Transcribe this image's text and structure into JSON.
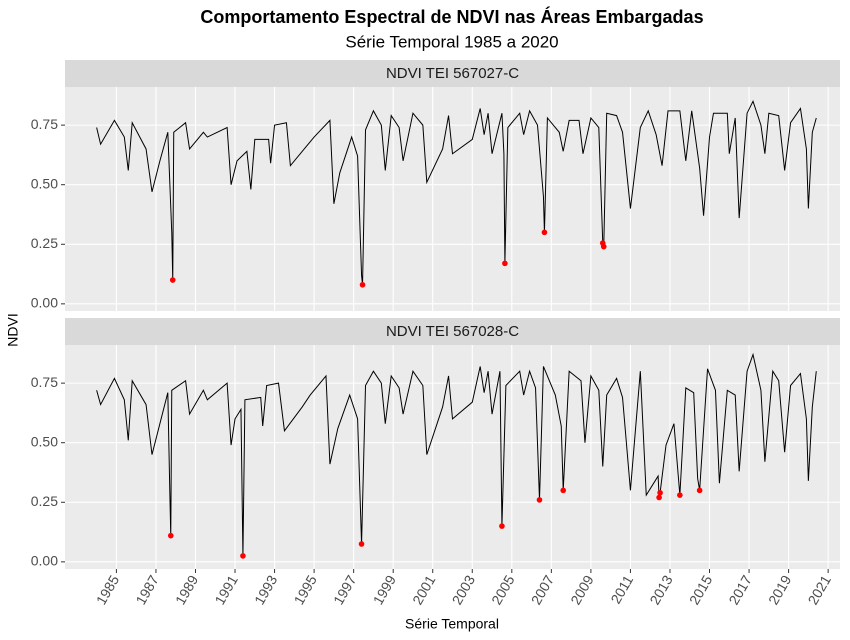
{
  "chart_data": {
    "type": "line",
    "title": "Comportamento Espectral de NDVI nas Áreas Embargadas",
    "subtitle": "Série Temporal 1985 a 2020",
    "x_label": "Série Temporal",
    "y_label": "NDVI",
    "xlim": [
      1982.4,
      2021.6
    ],
    "xticks": [
      1985,
      1987,
      1989,
      1991,
      1993,
      1995,
      1997,
      1999,
      2001,
      2003,
      2005,
      2007,
      2009,
      2011,
      2013,
      2015,
      2017,
      2019,
      2021
    ],
    "ylim": [
      -0.03,
      0.91
    ],
    "yticks": [
      {
        "value": 0,
        "label": "0.00"
      },
      0.25,
      {
        "value": 0.5,
        "label": "0.50"
      },
      0.75
    ],
    "grid": true,
    "line_color": "#000000",
    "point_color": "#ff0000",
    "panels": [
      {
        "strip": "NDVI TEI 567027-C",
        "x": [
          1984.0,
          1984.2,
          1984.9,
          1985.4,
          1985.6,
          1985.8,
          1986.5,
          1986.8,
          1987.2,
          1987.6,
          1987.8,
          1987.85,
          1987.9,
          1988.5,
          1988.7,
          1989.4,
          1989.6,
          1990.6,
          1990.8,
          1991.1,
          1991.6,
          1991.8,
          1992.0,
          1992.7,
          1992.8,
          1993.0,
          1993.6,
          1993.8,
          1994.6,
          1995.0,
          1995.8,
          1996.0,
          1996.3,
          1996.9,
          1997.2,
          1997.4,
          1997.45,
          1997.6,
          1998.0,
          1998.4,
          1998.6,
          1998.9,
          1999.3,
          1999.5,
          2000.0,
          2000.5,
          2000.7,
          2001.5,
          2001.8,
          2002.0,
          2003.0,
          2003.4,
          2003.6,
          2003.8,
          2004.0,
          2004.5,
          2004.6,
          2004.65,
          2004.8,
          2005.4,
          2005.6,
          2005.9,
          2006.3,
          2006.6,
          2006.65,
          2006.8,
          2007.4,
          2007.6,
          2007.9,
          2008.4,
          2008.6,
          2009.0,
          2009.4,
          2009.6,
          2009.65,
          2009.8,
          2010.3,
          2010.6,
          2011.0,
          2011.5,
          2011.9,
          2012.3,
          2012.6,
          2012.9,
          2013.5,
          2013.8,
          2014.1,
          2014.5,
          2014.7,
          2015.0,
          2015.2,
          2015.9,
          2016.0,
          2016.3,
          2016.5,
          2016.9,
          2017.2,
          2017.6,
          2017.8,
          2018.0,
          2018.5,
          2018.8,
          2019.1,
          2019.6,
          2019.9,
          2020.0,
          2020.2,
          2020.4
        ],
        "values": [
          0.74,
          0.67,
          0.77,
          0.7,
          0.56,
          0.76,
          0.65,
          0.47,
          0.6,
          0.72,
          0.3,
          0.1,
          0.72,
          0.76,
          0.65,
          0.72,
          0.7,
          0.74,
          0.5,
          0.6,
          0.64,
          0.48,
          0.69,
          0.69,
          0.59,
          0.75,
          0.76,
          0.58,
          0.66,
          0.7,
          0.77,
          0.42,
          0.55,
          0.7,
          0.62,
          0.12,
          0.08,
          0.73,
          0.81,
          0.75,
          0.56,
          0.79,
          0.74,
          0.6,
          0.8,
          0.75,
          0.51,
          0.65,
          0.79,
          0.63,
          0.69,
          0.82,
          0.71,
          0.8,
          0.63,
          0.8,
          0.63,
          0.17,
          0.74,
          0.8,
          0.71,
          0.81,
          0.75,
          0.45,
          0.3,
          0.78,
          0.72,
          0.64,
          0.77,
          0.77,
          0.63,
          0.78,
          0.74,
          0.255,
          0.24,
          0.8,
          0.79,
          0.72,
          0.4,
          0.74,
          0.81,
          0.71,
          0.58,
          0.81,
          0.81,
          0.6,
          0.81,
          0.57,
          0.37,
          0.7,
          0.8,
          0.8,
          0.63,
          0.78,
          0.36,
          0.8,
          0.85,
          0.75,
          0.63,
          0.8,
          0.79,
          0.56,
          0.76,
          0.82,
          0.65,
          0.4,
          0.72,
          0.78
        ],
        "points": {
          "x": [
            1987.85,
            1997.45,
            2004.65,
            2006.65,
            2009.6,
            2009.65
          ],
          "values": [
            0.1,
            0.08,
            0.17,
            0.3,
            0.255,
            0.24
          ]
        }
      },
      {
        "strip": "NDVI TEI 567028-C",
        "x": [
          1984.0,
          1984.2,
          1984.9,
          1985.4,
          1985.6,
          1985.8,
          1986.5,
          1986.8,
          1987.2,
          1987.6,
          1987.7,
          1987.75,
          1987.8,
          1988.5,
          1988.7,
          1989.4,
          1989.6,
          1990.6,
          1990.8,
          1991.0,
          1991.3,
          1991.4,
          1991.5,
          1992.3,
          1992.4,
          1992.6,
          1993.2,
          1993.5,
          1994.4,
          1994.8,
          1995.6,
          1995.8,
          1996.2,
          1996.8,
          1997.2,
          1997.4,
          1997.6,
          1998.0,
          1998.4,
          1998.6,
          1998.9,
          1999.3,
          1999.5,
          2000.0,
          2000.5,
          2000.7,
          2001.5,
          2001.8,
          2002.0,
          2003.0,
          2003.4,
          2003.6,
          2003.8,
          2004.0,
          2004.4,
          2004.5,
          2004.7,
          2005.4,
          2005.6,
          2005.9,
          2006.2,
          2006.4,
          2006.6,
          2007.2,
          2007.5,
          2007.6,
          2007.9,
          2008.5,
          2008.7,
          2009.0,
          2009.4,
          2009.6,
          2009.8,
          2010.3,
          2010.6,
          2011.0,
          2011.5,
          2011.8,
          2012.4,
          2012.45,
          2012.5,
          2012.8,
          2013.2,
          2013.5,
          2013.8,
          2014.2,
          2014.4,
          2014.5,
          2014.9,
          2015.3,
          2015.5,
          2015.9,
          2016.3,
          2016.5,
          2016.9,
          2017.2,
          2017.6,
          2017.8,
          2018.2,
          2018.5,
          2018.8,
          2019.1,
          2019.6,
          2019.9,
          2020.0,
          2020.2,
          2020.4
        ],
        "values": [
          0.72,
          0.66,
          0.77,
          0.68,
          0.51,
          0.76,
          0.66,
          0.45,
          0.58,
          0.71,
          0.3,
          0.11,
          0.72,
          0.76,
          0.62,
          0.72,
          0.68,
          0.75,
          0.49,
          0.6,
          0.64,
          0.025,
          0.68,
          0.69,
          0.57,
          0.74,
          0.75,
          0.55,
          0.65,
          0.7,
          0.78,
          0.41,
          0.56,
          0.7,
          0.6,
          0.075,
          0.74,
          0.8,
          0.75,
          0.58,
          0.78,
          0.73,
          0.62,
          0.8,
          0.74,
          0.45,
          0.65,
          0.78,
          0.6,
          0.67,
          0.82,
          0.71,
          0.8,
          0.62,
          0.8,
          0.15,
          0.74,
          0.8,
          0.7,
          0.8,
          0.73,
          0.26,
          0.82,
          0.7,
          0.57,
          0.3,
          0.8,
          0.76,
          0.5,
          0.78,
          0.72,
          0.4,
          0.7,
          0.77,
          0.69,
          0.3,
          0.8,
          0.28,
          0.36,
          0.27,
          0.29,
          0.49,
          0.58,
          0.28,
          0.73,
          0.71,
          0.35,
          0.3,
          0.81,
          0.72,
          0.33,
          0.72,
          0.7,
          0.38,
          0.8,
          0.87,
          0.72,
          0.42,
          0.8,
          0.76,
          0.46,
          0.74,
          0.79,
          0.6,
          0.34,
          0.65,
          0.8
        ],
        "points": {
          "x": [
            1987.75,
            1991.4,
            1997.4,
            2004.5,
            2006.4,
            2007.6,
            2012.45,
            2012.5,
            2013.5,
            2014.5
          ],
          "values": [
            0.11,
            0.025,
            0.075,
            0.15,
            0.26,
            0.3,
            0.27,
            0.29,
            0.28,
            0.3
          ]
        }
      }
    ]
  }
}
